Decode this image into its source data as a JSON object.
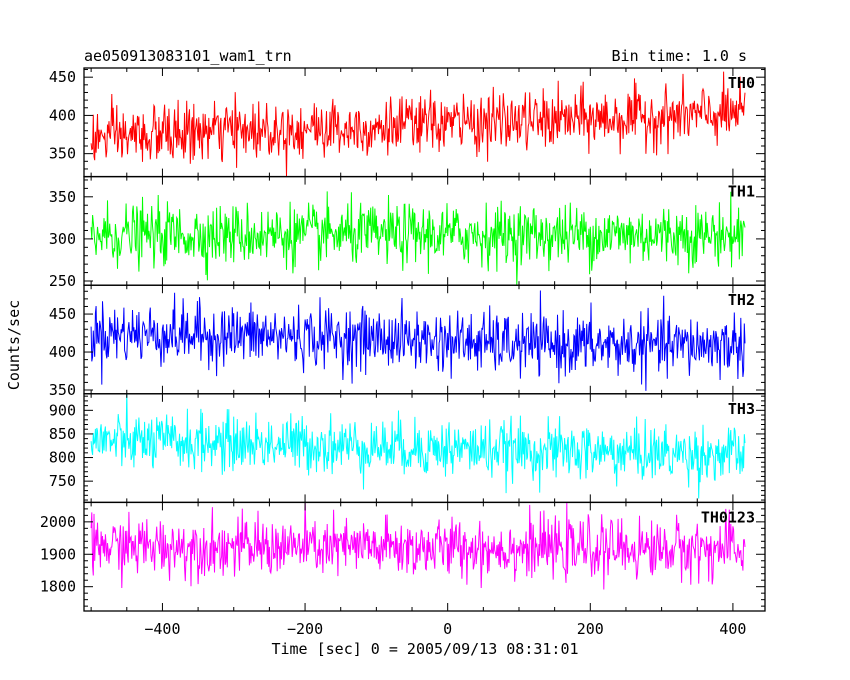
{
  "chart_data": {
    "type": "line",
    "title_left": "ae050913083101_wam1_trn",
    "title_right": "Bin time: 1.0 s",
    "xlabel": "Time [sec] 0 = 2005/09/13 08:31:01",
    "ylabel": "Counts/sec",
    "xlim": [
      -510,
      445
    ],
    "x_data_range": [
      -500,
      417
    ],
    "bin_time_s": 1.0,
    "x_ticks": [
      -400,
      -200,
      0,
      200,
      400
    ],
    "grid": false,
    "legend": "none",
    "panels": [
      {
        "name": "TH0",
        "color": "#ff0000",
        "ylim": [
          320,
          462
        ],
        "y_ticks": [
          350,
          400,
          450
        ],
        "trend": {
          "x": [
            -500,
            -300,
            -100,
            0,
            100,
            300,
            417
          ],
          "y": [
            370,
            380,
            385,
            390,
            392,
            398,
            402
          ]
        },
        "noise_sd": 19
      },
      {
        "name": "TH1",
        "color": "#00ff00",
        "ylim": [
          245,
          374
        ],
        "y_ticks": [
          250,
          300,
          350
        ],
        "trend": {
          "x": [
            -500,
            417
          ],
          "y": [
            305,
            305
          ]
        },
        "noise_sd": 18
      },
      {
        "name": "TH2",
        "color": "#0000ff",
        "ylim": [
          345,
          488
        ],
        "y_ticks": [
          350,
          400,
          450
        ],
        "trend": {
          "x": [
            -500,
            -300,
            -100,
            100,
            300,
            417
          ],
          "y": [
            425,
            422,
            418,
            410,
            408,
            410
          ]
        },
        "noise_sd": 20
      },
      {
        "name": "TH3",
        "color": "#00ffff",
        "ylim": [
          705,
          935
        ],
        "y_ticks": [
          750,
          800,
          850,
          900
        ],
        "trend": {
          "x": [
            -500,
            -200,
            100,
            417
          ],
          "y": [
            835,
            828,
            815,
            805
          ]
        },
        "noise_sd": 30
      },
      {
        "name": "TH0123",
        "color": "#ff00ff",
        "ylim": [
          1725,
          2060
        ],
        "y_ticks": [
          1800,
          1900,
          2000
        ],
        "trend": {
          "x": [
            -500,
            417
          ],
          "y": [
            1925,
            1915
          ]
        },
        "noise_sd": 45
      }
    ]
  }
}
